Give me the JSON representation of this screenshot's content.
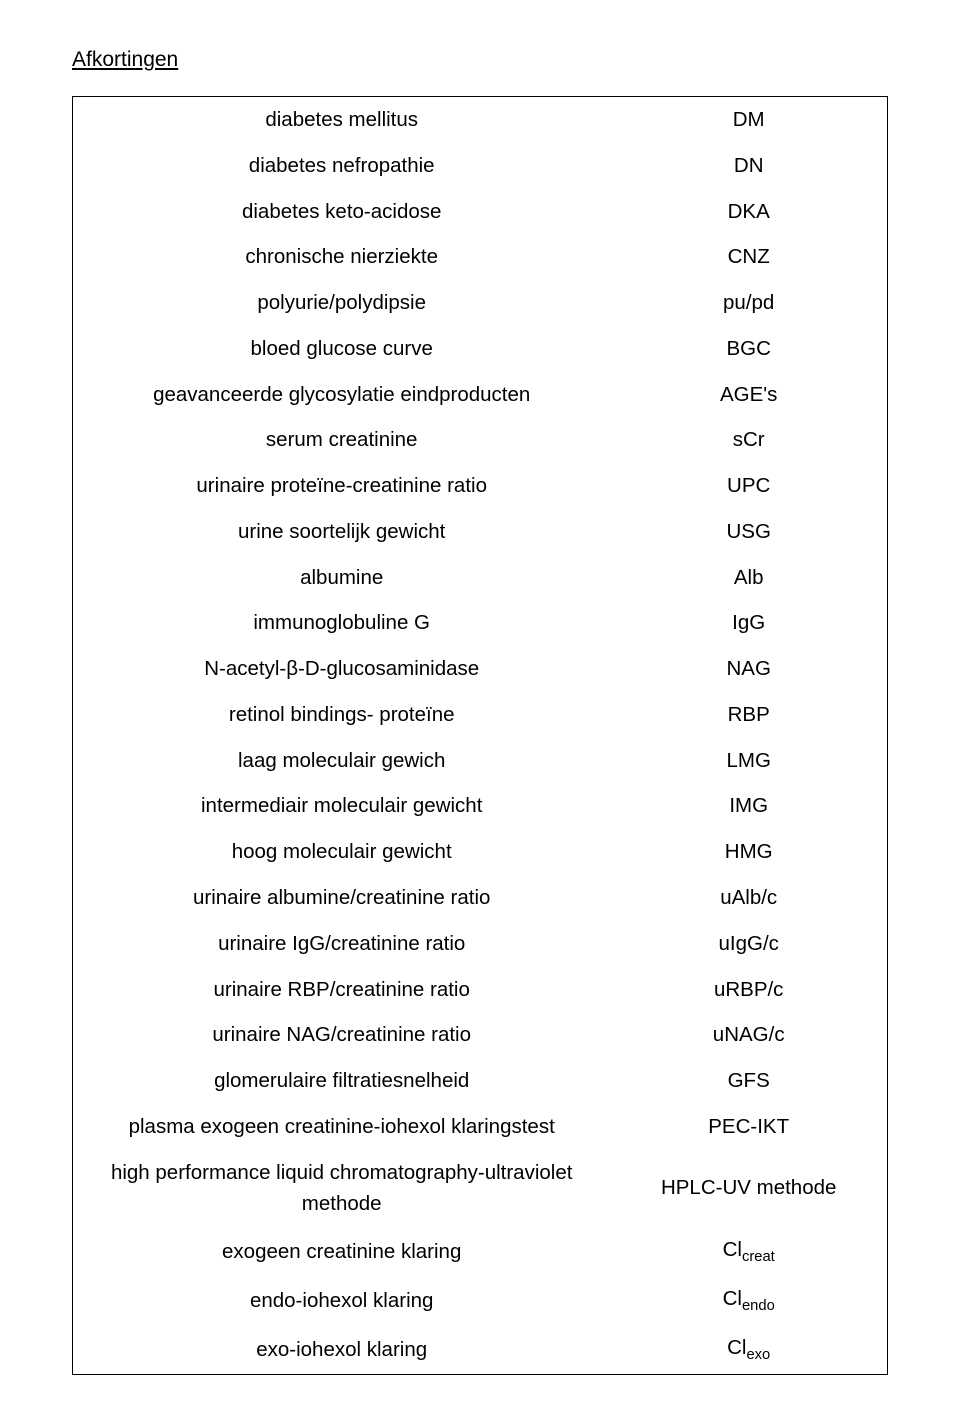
{
  "title": "Afkortingen",
  "rows": [
    {
      "term": "diabetes mellitus",
      "abbr": "DM"
    },
    {
      "term": "diabetes nefropathie",
      "abbr": "DN"
    },
    {
      "term": "diabetes keto-acidose",
      "abbr": "DKA"
    },
    {
      "term": "chronische nierziekte",
      "abbr": "CNZ"
    },
    {
      "term": "polyurie/polydipsie",
      "abbr": "pu/pd"
    },
    {
      "term": "bloed glucose curve",
      "abbr": "BGC"
    },
    {
      "term": "geavanceerde glycosylatie eindproducten",
      "abbr": "AGE's"
    },
    {
      "term": "serum creatinine",
      "abbr": "sCr"
    },
    {
      "term": "urinaire proteïne-creatinine ratio",
      "abbr": "UPC"
    },
    {
      "term": "urine soortelijk gewicht",
      "abbr": "USG"
    },
    {
      "term": "albumine",
      "abbr": "Alb"
    },
    {
      "term": "immunoglobuline G",
      "abbr": "IgG"
    },
    {
      "term": "N-acetyl-β-D-glucosaminidase",
      "abbr": "NAG"
    },
    {
      "term": "retinol bindings- proteïne",
      "abbr": "RBP"
    },
    {
      "term": "laag moleculair gewich",
      "abbr": "LMG"
    },
    {
      "term": "intermediair moleculair gewicht",
      "abbr": "IMG"
    },
    {
      "term": "hoog moleculair gewicht",
      "abbr": "HMG"
    },
    {
      "term": "urinaire albumine/creatinine ratio",
      "abbr": "uAlb/c"
    },
    {
      "term": "urinaire IgG/creatinine ratio",
      "abbr": "uIgG/c"
    },
    {
      "term": "urinaire RBP/creatinine ratio",
      "abbr": "uRBP/c"
    },
    {
      "term": "urinaire NAG/creatinine ratio",
      "abbr": "uNAG/c"
    },
    {
      "term": "glomerulaire filtratiesnelheid",
      "abbr": "GFS"
    },
    {
      "term": "plasma exogeen creatinine-iohexol klaringstest",
      "abbr": "PEC-IKT"
    },
    {
      "term": "high performance liquid chromatography-ultraviolet methode",
      "abbr": "HPLC-UV methode"
    },
    {
      "term": "exogeen creatinine klaring",
      "abbr": "Cl",
      "abbr_sub": "creat"
    },
    {
      "term": "endo-iohexol klaring",
      "abbr": "Cl",
      "abbr_sub": "endo"
    },
    {
      "term": "exo-iohexol klaring",
      "abbr": "Cl",
      "abbr_sub": "exo"
    }
  ]
}
